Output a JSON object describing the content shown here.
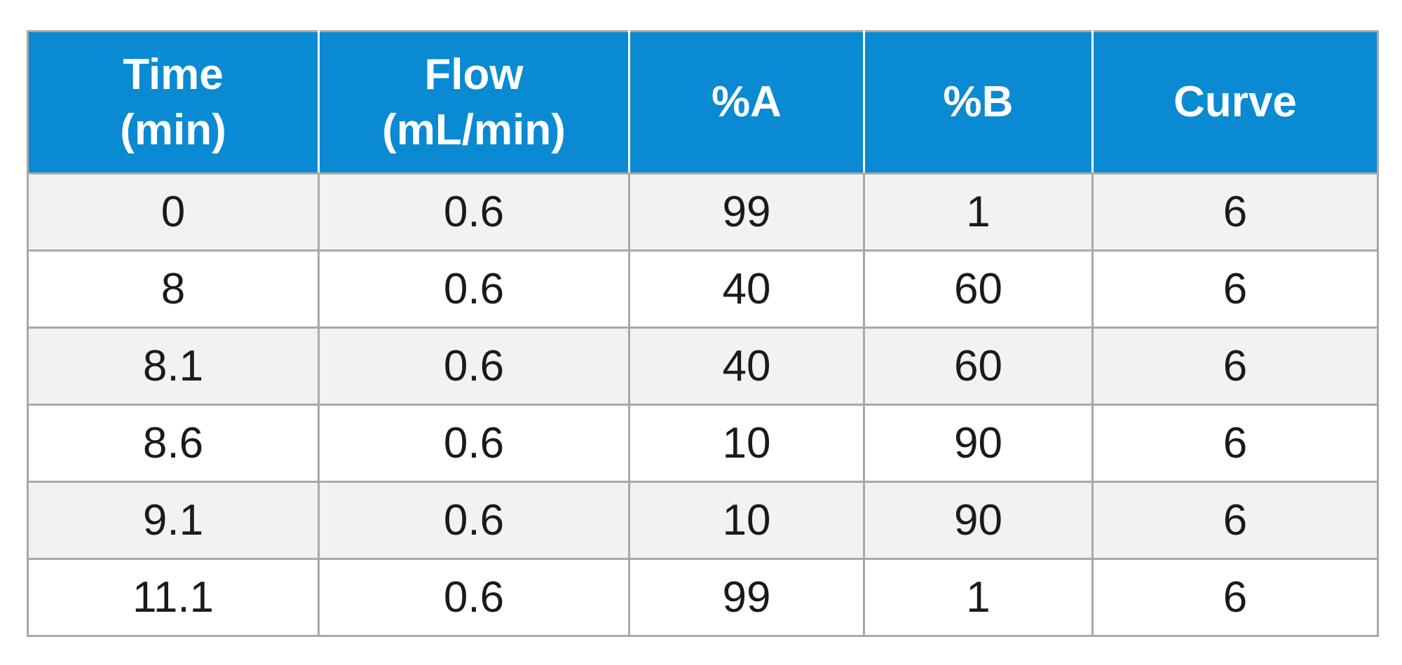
{
  "table": {
    "header_color": "#0a8ad2",
    "columns": [
      {
        "line1": "Time",
        "line2": "(min)"
      },
      {
        "line1": "Flow",
        "line2": "(mL/min)"
      },
      {
        "line1": "%A",
        "line2": ""
      },
      {
        "line1": "%B",
        "line2": ""
      },
      {
        "line1": "Curve",
        "line2": ""
      }
    ],
    "rows": [
      [
        "0",
        "0.6",
        "99",
        "1",
        "6"
      ],
      [
        "8",
        "0.6",
        "40",
        "60",
        "6"
      ],
      [
        "8.1",
        "0.6",
        "40",
        "60",
        "6"
      ],
      [
        "8.6",
        "0.6",
        "10",
        "90",
        "6"
      ],
      [
        "9.1",
        "0.6",
        "10",
        "90",
        "6"
      ],
      [
        "11.1",
        "0.6",
        "99",
        "1",
        "6"
      ]
    ]
  }
}
